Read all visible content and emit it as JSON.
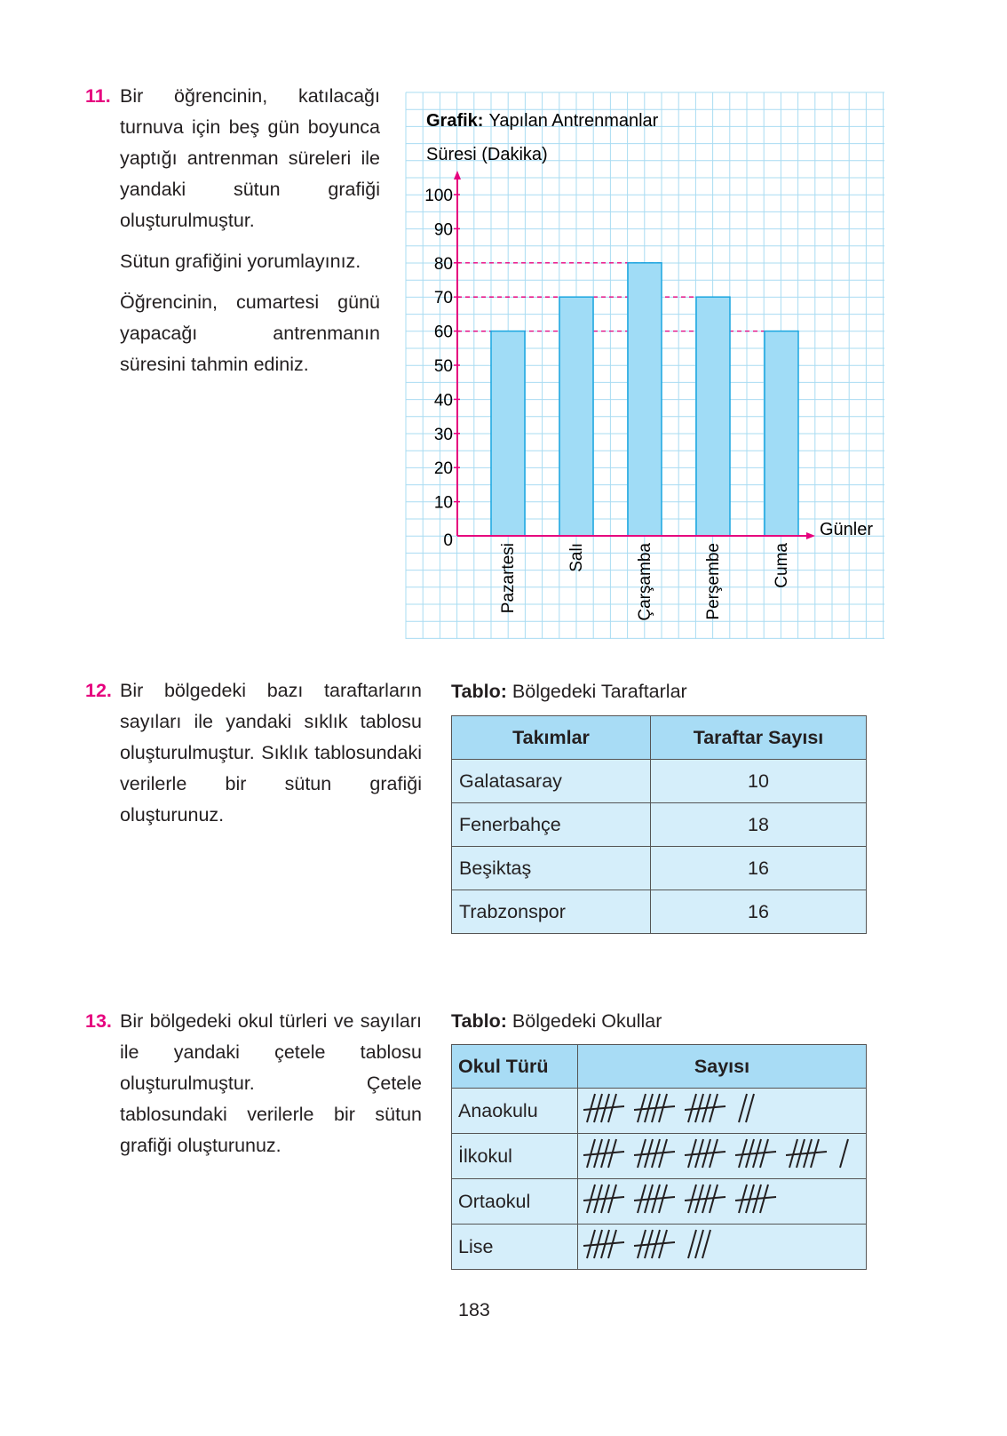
{
  "q11": {
    "number": "11.",
    "paragraphs": [
      "Bir öğrencinin, katılacağı turnuva için beş gün boyunca yaptığı antrenman süreleri ile yandaki sütun grafiği oluşturulmuştur.",
      "Sütun grafiğini yorumlayınız.",
      "Öğrencinin, cumartesi günü yapacağı antrenmanın süresini tahmin ediniz."
    ]
  },
  "chart_data": {
    "type": "bar",
    "title_bold": "Grafik:",
    "title": "Yapılan Antrenmanlar",
    "ylabel": "Süresi (Dakika)",
    "xlabel": "Günler",
    "categories": [
      "Pazartesi",
      "Salı",
      "Çarşamba",
      "Perşembe",
      "Cuma"
    ],
    "values": [
      60,
      70,
      80,
      70,
      60
    ],
    "yticks": [
      "0",
      "10",
      "20",
      "30",
      "40",
      "50",
      "60",
      "70",
      "80",
      "90",
      "100"
    ],
    "ylim": [
      0,
      100
    ],
    "grid": true,
    "colors": {
      "bar": "#a0dcf6",
      "bar_edge": "#1aa6e0",
      "axis": "#e6007e",
      "grid": "#a9dcf2"
    }
  },
  "q12": {
    "number": "12.",
    "text": "Bir bölgedeki bazı taraftarların sayıları ile yandaki sıklık tablosu oluşturulmuştur. Sıklık tablosundaki verilerle bir sütun grafiği oluşturunuz.",
    "caption_bold": "Tablo:",
    "caption": "Bölgedeki Taraftarlar",
    "headers": [
      "Takımlar",
      "Taraftar Sayısı"
    ],
    "rows": [
      [
        "Galatasaray",
        "10"
      ],
      [
        "Fenerbahçe",
        "18"
      ],
      [
        "Beşiktaş",
        "16"
      ],
      [
        "Trabzonspor",
        "16"
      ]
    ]
  },
  "q13": {
    "number": "13.",
    "text": "Bir bölgedeki okul türleri ve sayıları ile yandaki çetele tablosu oluşturulmuştur. Çetele tablosundaki verilerle bir sütun grafiği oluşturunuz.",
    "caption_bold": "Tablo:",
    "caption": "Bölgedeki Okullar",
    "headers": [
      "Okul Türü",
      "Sayısı"
    ],
    "rows": [
      {
        "label": "Anaokulu",
        "tally": 17
      },
      {
        "label": "İlkokul",
        "tally": 26
      },
      {
        "label": "Ortaokul",
        "tally": 20
      },
      {
        "label": "Lise",
        "tally": 13
      }
    ]
  },
  "page_number": "183"
}
